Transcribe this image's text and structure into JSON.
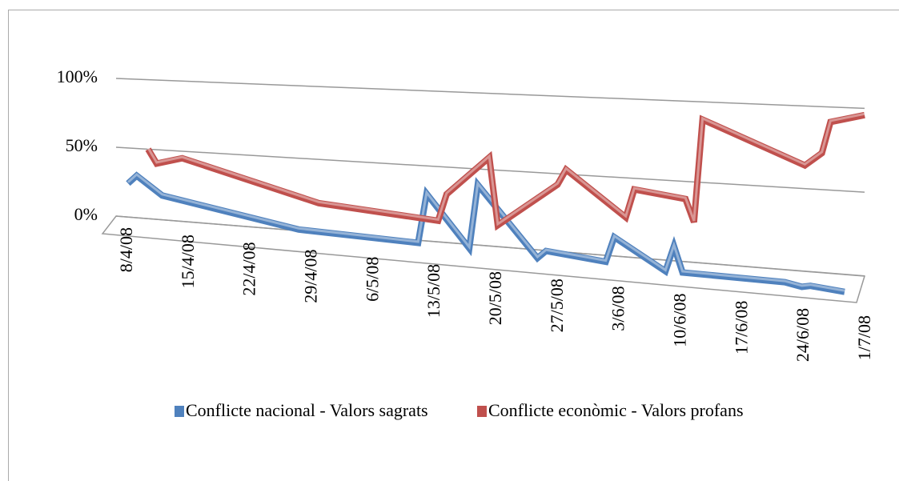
{
  "chart_data": {
    "type": "line3d",
    "x": [
      "8/4/08",
      "9/4/08",
      "12/4/08",
      "28/4/08",
      "12/5/08",
      "13/5/08",
      "18/5/08",
      "19/5/08",
      "26/5/08",
      "27/5/08",
      "3/6/08",
      "4/6/08",
      "10/6/08",
      "11/6/08",
      "12/6/08",
      "24/6/08",
      "26/6/08",
      "27/6/08",
      "1/7/08"
    ],
    "series": [
      {
        "name": "Conflicte nacional - Valors sagrats",
        "color": "#4f81bd",
        "values": [
          38,
          44,
          31,
          14,
          11,
          44,
          10,
          52,
          7,
          12,
          8,
          24,
          5,
          21,
          5,
          4,
          2,
          3,
          1
        ]
      },
      {
        "name": "Conflicte econòmic - Valors profans",
        "color": "#c0504d",
        "values": [
          50,
          40,
          45,
          20,
          14,
          32,
          58,
          14,
          43,
          53,
          25,
          43,
          39,
          25,
          89,
          64,
          72,
          91,
          96
        ]
      }
    ],
    "xlim": [
      "8/4/08",
      "1/7/08"
    ],
    "xticks": [
      "8/4/08",
      "15/4/08",
      "22/4/08",
      "29/4/08",
      "6/5/08",
      "13/5/08",
      "20/5/08",
      "27/5/08",
      "3/6/08",
      "10/6/08",
      "17/6/08",
      "24/6/08",
      "1/7/08"
    ],
    "ylim": [
      0,
      100
    ],
    "yticks": [
      {
        "value": 0,
        "label": "0%"
      },
      {
        "value": 50,
        "label": "50%"
      },
      {
        "value": 100,
        "label": "100%"
      }
    ],
    "grid": true,
    "legend": "bottom"
  }
}
